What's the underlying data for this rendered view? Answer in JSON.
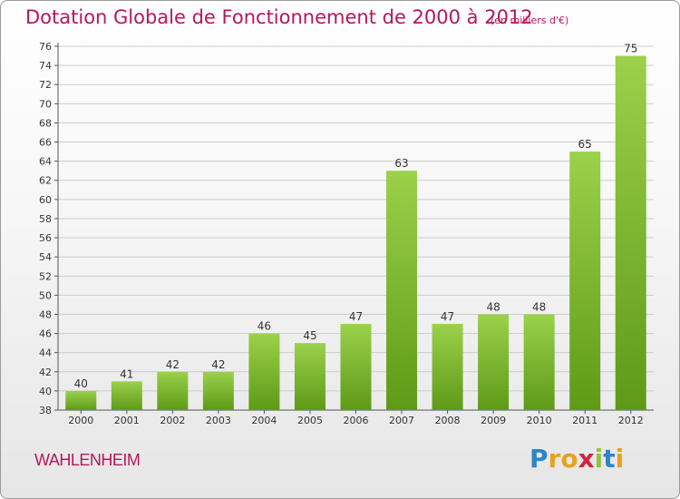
{
  "header": {
    "title": "Dotation Globale de Fonctionnement de 2000 à 2012",
    "subtitle": "(en milliers d'€)"
  },
  "footer": {
    "commune": "WAHLENHEIM",
    "logo_text": "Proxiti"
  },
  "colors": {
    "accent": "#b5175e",
    "bar_light": "#9bd14b",
    "bar_dark": "#5e9a17",
    "grid": "#cccccc"
  },
  "chart_data": {
    "type": "bar",
    "title": "Dotation Globale de Fonctionnement de 2000 à 2012",
    "subtitle": "(en milliers d'€)",
    "categories": [
      "2000",
      "2001",
      "2002",
      "2003",
      "2004",
      "2005",
      "2006",
      "2007",
      "2008",
      "2009",
      "2010",
      "2011",
      "2012"
    ],
    "values": [
      40,
      41,
      42,
      42,
      46,
      45,
      47,
      63,
      47,
      48,
      48,
      65,
      75
    ],
    "ylim": [
      38,
      76
    ],
    "ytick_step": 2,
    "grid": true,
    "data_labels": true,
    "legend": "none"
  }
}
